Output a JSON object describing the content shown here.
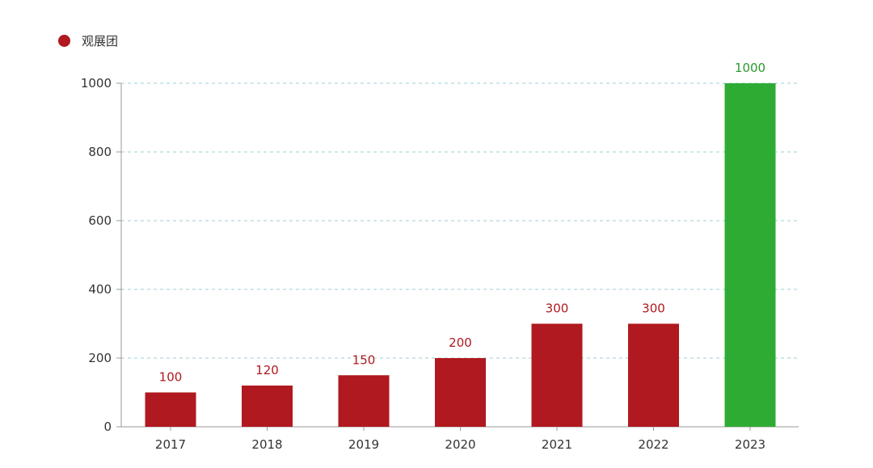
{
  "chart_data": {
    "type": "bar",
    "legend": [
      {
        "name": "观展团",
        "color": "#b0191f"
      }
    ],
    "legend_position": "top-left",
    "categories": [
      "2017",
      "2018",
      "2019",
      "2020",
      "2021",
      "2022",
      "2023"
    ],
    "values": [
      100,
      120,
      150,
      200,
      300,
      300,
      1000
    ],
    "value_labels": [
      "100",
      "120",
      "150",
      "200",
      "300",
      "300",
      "1000"
    ],
    "bar_colors": [
      "#b0191f",
      "#b0191f",
      "#b0191f",
      "#b0191f",
      "#b0191f",
      "#b0191f",
      "#2eab33"
    ],
    "label_colors": [
      "#b0191f",
      "#b0191f",
      "#b0191f",
      "#b0191f",
      "#b0191f",
      "#b0191f",
      "#2a9a2e"
    ],
    "y_ticks": [
      "0",
      "200",
      "400",
      "600",
      "800",
      "1000"
    ],
    "ylim": [
      0,
      1000
    ],
    "grid": true,
    "grid_color": "#9ecfd6",
    "axis_color": "#999999"
  }
}
